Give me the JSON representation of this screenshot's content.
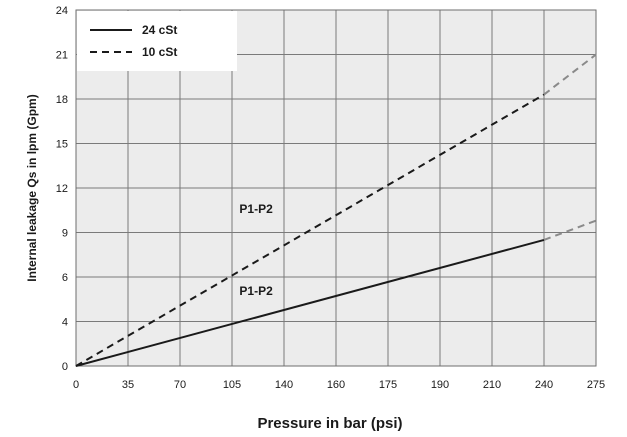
{
  "chart_data": {
    "type": "line",
    "xlabel": "Pressure in bar (psi)",
    "ylabel": "Internal leakage Qs in lpm (Gpm)",
    "xlim": [
      0,
      275
    ],
    "ylim": [
      0,
      24
    ],
    "x_ticks": [
      0,
      35,
      70,
      105,
      140,
      160,
      175,
      190,
      210,
      240,
      275
    ],
    "y_ticks": [
      0,
      4,
      6,
      9,
      12,
      15,
      18,
      21,
      24
    ],
    "grid": true,
    "legend_position": "top-left",
    "series": [
      {
        "name": "24 cSt",
        "style": "solid",
        "color": "#1a1a1a",
        "x": [
          0,
          240
        ],
        "y": [
          0,
          8.5
        ],
        "extrapolated": {
          "x": [
            240,
            275
          ],
          "y": [
            8.5,
            9.8
          ],
          "color": "#8a8a8a"
        }
      },
      {
        "name": "10 cSt",
        "style": "dashed",
        "color": "#1a1a1a",
        "x": [
          0,
          240
        ],
        "y": [
          0,
          18.3
        ],
        "extrapolated": {
          "x": [
            240,
            275
          ],
          "y": [
            18.3,
            21
          ],
          "color": "#8a8a8a"
        }
      }
    ],
    "annotations": [
      {
        "text": "P1-P2",
        "x": 110,
        "y": 10.3
      },
      {
        "text": "P1-P2",
        "x": 110,
        "y": 5.2
      }
    ]
  }
}
